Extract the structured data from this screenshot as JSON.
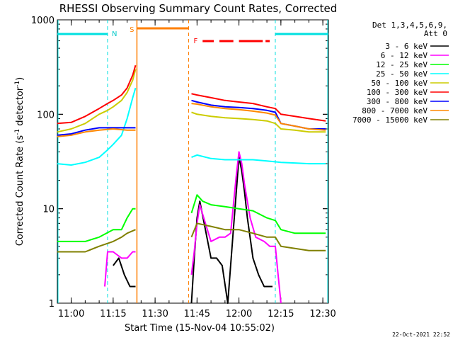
{
  "chart_data": {
    "type": "line",
    "title": "RHESSI Observing Summary Count Rates, Corrected",
    "xlabel": "Start Time (15-Nov-04 10:55:02)",
    "ylabel_main": "Corrected Count Rate (s",
    "ylabel_sup1": "-1",
    "ylabel_mid": " detector",
    "ylabel_sup2": "-1",
    "ylabel_end": ")",
    "y_scale": "log",
    "ylim": [
      1,
      1000
    ],
    "xlim": [
      "10:55:02",
      "12:32:00"
    ],
    "x_ticks": [
      "11:00",
      "11:15",
      "11:30",
      "11:45",
      "12:00",
      "12:15",
      "12:30"
    ],
    "y_ticks": [
      "1",
      "10",
      "100",
      "1000"
    ],
    "legend_header": [
      "Det 1,3,4,5,6,9,",
      "Att 0"
    ],
    "legend_placement": "right",
    "footer_date": "22-Oct-2021 22:52",
    "flags": {
      "N_label": "N",
      "S_label": "S",
      "F_label": "F",
      "night_intervals": [
        [
          "10:55:02",
          "11:13:00"
        ],
        [
          "12:13:00",
          "12:32:00"
        ]
      ],
      "saa_interval": [
        "11:23:30",
        "11:42:00"
      ],
      "flare_segments": [
        [
          "11:47:00",
          "11:51:00"
        ],
        [
          "11:53:00",
          "11:58:00"
        ],
        [
          "12:00:00",
          "12:08:30"
        ],
        [
          "12:09:30",
          "12:11:00"
        ]
      ]
    },
    "series": [
      {
        "name": "3 - 6 keV",
        "color": "#000000",
        "points": [
          [
            "11:15",
            2.5
          ],
          [
            "11:17",
            3
          ],
          [
            "11:19",
            2
          ],
          [
            "11:21",
            1.5
          ],
          [
            "11:23",
            1.5
          ],
          [
            "11:43",
            1
          ],
          [
            "11:44",
            3
          ],
          [
            "11:45",
            8
          ],
          [
            "11:46",
            12
          ],
          [
            "11:48",
            6
          ],
          [
            "11:50",
            3
          ],
          [
            "11:52",
            3
          ],
          [
            "11:54",
            2.5
          ],
          [
            "11:56",
            1
          ],
          [
            "11:58",
            6
          ],
          [
            "12:00",
            35
          ],
          [
            "12:01",
            25
          ],
          [
            "12:02",
            15
          ],
          [
            "12:03",
            8
          ],
          [
            "12:05",
            3
          ],
          [
            "12:07",
            2
          ],
          [
            "12:09",
            1.5
          ],
          [
            "12:12",
            1.5
          ]
        ]
      },
      {
        "name": "6 - 12 keV",
        "color": "#ff00ff",
        "points": [
          [
            "11:12",
            1.5
          ],
          [
            "11:13",
            3.5
          ],
          [
            "11:15",
            3.5
          ],
          [
            "11:18",
            3
          ],
          [
            "11:20",
            3
          ],
          [
            "11:22",
            3.5
          ],
          [
            "11:23",
            3.5
          ],
          [
            "11:43",
            2
          ],
          [
            "11:44",
            3.5
          ],
          [
            "11:45",
            7
          ],
          [
            "11:46",
            11
          ],
          [
            "11:48",
            7
          ],
          [
            "11:50",
            4.5
          ],
          [
            "11:53",
            5
          ],
          [
            "11:55",
            5
          ],
          [
            "11:57",
            5.5
          ],
          [
            "11:59",
            22
          ],
          [
            "12:00",
            40
          ],
          [
            "12:01",
            30
          ],
          [
            "12:02",
            18
          ],
          [
            "12:04",
            8
          ],
          [
            "12:06",
            5
          ],
          [
            "12:09",
            4.5
          ],
          [
            "12:11",
            4
          ],
          [
            "12:13",
            4
          ],
          [
            "12:14",
            2
          ],
          [
            "12:15",
            1
          ]
        ]
      },
      {
        "name": "12 - 25 keV",
        "color": "#00ff00",
        "points": [
          [
            "10:55",
            4.5
          ],
          [
            "11:05",
            4.5
          ],
          [
            "11:10",
            5
          ],
          [
            "11:15",
            6
          ],
          [
            "11:18",
            6
          ],
          [
            "11:20",
            8
          ],
          [
            "11:22",
            10
          ],
          [
            "11:23",
            10
          ],
          [
            "11:43",
            9
          ],
          [
            "11:45",
            14
          ],
          [
            "11:47",
            12
          ],
          [
            "11:50",
            11
          ],
          [
            "11:55",
            10.5
          ],
          [
            "12:00",
            10
          ],
          [
            "12:05",
            9.5
          ],
          [
            "12:10",
            8
          ],
          [
            "12:13",
            7.5
          ],
          [
            "12:15",
            6
          ],
          [
            "12:20",
            5.5
          ],
          [
            "12:25",
            5.5
          ],
          [
            "12:31",
            5.5
          ]
        ]
      },
      {
        "name": "25 - 50 keV",
        "color": "#00ffff",
        "points": [
          [
            "10:55",
            30
          ],
          [
            "11:00",
            29
          ],
          [
            "11:05",
            31
          ],
          [
            "11:10",
            35
          ],
          [
            "11:13",
            42
          ],
          [
            "11:15",
            48
          ],
          [
            "11:18",
            60
          ],
          [
            "11:20",
            90
          ],
          [
            "11:22",
            150
          ],
          [
            "11:23",
            190
          ],
          [
            "11:43",
            35
          ],
          [
            "11:45",
            37
          ],
          [
            "11:50",
            34
          ],
          [
            "11:55",
            33
          ],
          [
            "12:00",
            33
          ],
          [
            "12:05",
            33
          ],
          [
            "12:10",
            32
          ],
          [
            "12:15",
            31
          ],
          [
            "12:20",
            30.5
          ],
          [
            "12:25",
            30
          ],
          [
            "12:31",
            30
          ]
        ]
      },
      {
        "name": "50 - 100 keV",
        "color": "#cccc00",
        "points": [
          [
            "10:55",
            65
          ],
          [
            "11:00",
            70
          ],
          [
            "11:05",
            80
          ],
          [
            "11:10",
            100
          ],
          [
            "11:13",
            110
          ],
          [
            "11:15",
            120
          ],
          [
            "11:18",
            140
          ],
          [
            "11:20",
            170
          ],
          [
            "11:22",
            230
          ],
          [
            "11:23",
            300
          ],
          [
            "11:43",
            105
          ],
          [
            "11:45",
            100
          ],
          [
            "11:50",
            95
          ],
          [
            "11:55",
            92
          ],
          [
            "12:00",
            90
          ],
          [
            "12:05",
            88
          ],
          [
            "12:10",
            85
          ],
          [
            "12:13",
            80
          ],
          [
            "12:15",
            70
          ],
          [
            "12:20",
            68
          ],
          [
            "12:25",
            65
          ],
          [
            "12:31",
            65
          ]
        ]
      },
      {
        "name": "100 - 300 keV",
        "color": "#ff0000",
        "points": [
          [
            "10:55",
            80
          ],
          [
            "11:00",
            82
          ],
          [
            "11:05",
            95
          ],
          [
            "11:10",
            115
          ],
          [
            "11:13",
            130
          ],
          [
            "11:15",
            140
          ],
          [
            "11:18",
            160
          ],
          [
            "11:20",
            190
          ],
          [
            "11:22",
            260
          ],
          [
            "11:23",
            330
          ],
          [
            "11:43",
            165
          ],
          [
            "11:45",
            160
          ],
          [
            "11:50",
            150
          ],
          [
            "11:55",
            140
          ],
          [
            "12:00",
            135
          ],
          [
            "12:05",
            130
          ],
          [
            "12:10",
            120
          ],
          [
            "12:13",
            115
          ],
          [
            "12:15",
            100
          ],
          [
            "12:20",
            95
          ],
          [
            "12:25",
            90
          ],
          [
            "12:31",
            85
          ]
        ]
      },
      {
        "name": "300 - 800 keV",
        "color": "#0000ff",
        "points": [
          [
            "10:55",
            60
          ],
          [
            "11:00",
            62
          ],
          [
            "11:05",
            68
          ],
          [
            "11:10",
            72
          ],
          [
            "11:15",
            72
          ],
          [
            "11:20",
            72
          ],
          [
            "11:23",
            72
          ],
          [
            "11:43",
            140
          ],
          [
            "11:45",
            135
          ],
          [
            "11:50",
            125
          ],
          [
            "11:55",
            120
          ],
          [
            "12:00",
            118
          ],
          [
            "12:05",
            115
          ],
          [
            "12:10",
            110
          ],
          [
            "12:13",
            105
          ],
          [
            "12:15",
            80
          ],
          [
            "12:20",
            75
          ],
          [
            "12:25",
            70
          ],
          [
            "12:31",
            70
          ]
        ]
      },
      {
        "name": "800 - 7000 keV",
        "color": "#ff8800",
        "points": [
          [
            "10:55",
            58
          ],
          [
            "11:00",
            60
          ],
          [
            "11:05",
            65
          ],
          [
            "11:10",
            68
          ],
          [
            "11:15",
            70
          ],
          [
            "11:20",
            68
          ],
          [
            "11:23",
            68
          ],
          [
            "11:43",
            130
          ],
          [
            "11:45",
            128
          ],
          [
            "11:50",
            120
          ],
          [
            "11:55",
            115
          ],
          [
            "12:00",
            112
          ],
          [
            "12:05",
            108
          ],
          [
            "12:10",
            103
          ],
          [
            "12:13",
            98
          ],
          [
            "12:15",
            80
          ],
          [
            "12:20",
            75
          ],
          [
            "12:25",
            70
          ],
          [
            "12:31",
            68
          ]
        ]
      },
      {
        "name": "7000 - 15000 keV",
        "color": "#808000",
        "points": [
          [
            "10:55",
            3.5
          ],
          [
            "11:05",
            3.5
          ],
          [
            "11:10",
            4
          ],
          [
            "11:15",
            4.5
          ],
          [
            "11:18",
            5
          ],
          [
            "11:20",
            5.5
          ],
          [
            "11:23",
            6
          ],
          [
            "11:43",
            5
          ],
          [
            "11:45",
            7
          ],
          [
            "11:50",
            6.5
          ],
          [
            "11:55",
            6
          ],
          [
            "12:00",
            6
          ],
          [
            "12:05",
            5.5
          ],
          [
            "12:10",
            5
          ],
          [
            "12:13",
            5
          ],
          [
            "12:15",
            4
          ],
          [
            "12:20",
            3.8
          ],
          [
            "12:25",
            3.6
          ],
          [
            "12:31",
            3.6
          ]
        ]
      }
    ]
  }
}
